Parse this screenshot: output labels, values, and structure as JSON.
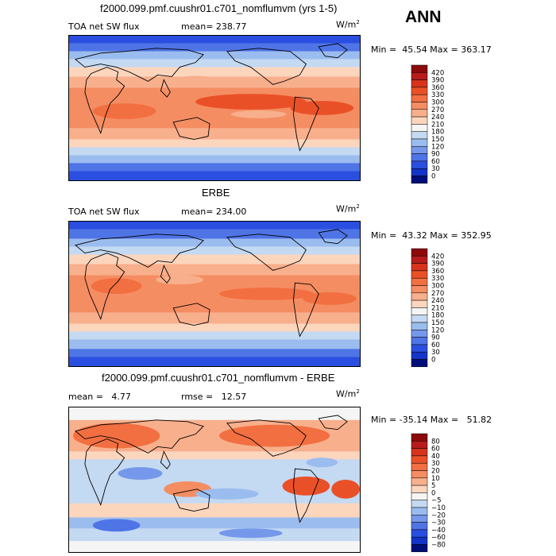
{
  "chart_data": [
    {
      "type": "heatmap",
      "title": "f2000.099.pmf.cuushr01.c701_nomflumvm (yrs 1-5)",
      "season": "ANN",
      "variable": "TOA net SW flux",
      "stat_label": "mean=",
      "stat_value": "238.77",
      "units": "W/m",
      "units_exp": "2",
      "min_label": "Min =",
      "min_value": "45.54",
      "max_label": "Max =",
      "max_value": "363.17",
      "levels": [
        "420",
        "390",
        "360",
        "330",
        "300",
        "270",
        "240",
        "210",
        "180",
        "150",
        "120",
        "90",
        "60",
        "30",
        "0"
      ],
      "colors": [
        "#8b0a0a",
        "#b71c1c",
        "#d8331c",
        "#ea5028",
        "#f26f41",
        "#f58d62",
        "#f8af8c",
        "#fcd5bd",
        "#f5f5f5",
        "#c4d9f2",
        "#9bbcee",
        "#7598ea",
        "#4e74e6",
        "#2a4fe0",
        "#1434c8",
        "#000e7a"
      ]
    },
    {
      "type": "heatmap",
      "title": "ERBE",
      "variable": "TOA net SW flux",
      "stat_label": "mean=",
      "stat_value": "234.00",
      "units": "W/m",
      "units_exp": "2",
      "min_label": "Min =",
      "min_value": "43.32",
      "max_label": "Max =",
      "max_value": "352.95",
      "levels": [
        "420",
        "390",
        "360",
        "330",
        "300",
        "270",
        "240",
        "210",
        "180",
        "150",
        "120",
        "90",
        "60",
        "30",
        "0"
      ],
      "colors": [
        "#8b0a0a",
        "#b71c1c",
        "#d8331c",
        "#ea5028",
        "#f26f41",
        "#f58d62",
        "#f8af8c",
        "#fcd5bd",
        "#f5f5f5",
        "#c4d9f2",
        "#9bbcee",
        "#7598ea",
        "#4e74e6",
        "#2a4fe0",
        "#1434c8",
        "#000e7a"
      ]
    },
    {
      "type": "heatmap",
      "title": "f2000.099.pmf.cuushr01.c701_nomflumvm - ERBE",
      "stat_label": "mean =",
      "stat_value": "4.77",
      "stat2_label": "rmse =",
      "stat2_value": "12.57",
      "units": "W/m",
      "units_exp": "2",
      "min_label": "Min =",
      "min_value": "-35.14",
      "max_label": "Max =",
      "max_value": "51.82",
      "levels": [
        "80",
        "60",
        "40",
        "30",
        "20",
        "10",
        "5",
        "0",
        "−5",
        "−10",
        "−20",
        "−30",
        "−40",
        "−60",
        "−80"
      ],
      "colors": [
        "#8b0a0a",
        "#b71c1c",
        "#d8331c",
        "#ea5028",
        "#f26f41",
        "#f58d62",
        "#f8af8c",
        "#fcd5bd",
        "#f5f5f5",
        "#c4d9f2",
        "#9bbcee",
        "#7598ea",
        "#4e74e6",
        "#2a4fe0",
        "#1434c8",
        "#000e7a"
      ]
    }
  ]
}
